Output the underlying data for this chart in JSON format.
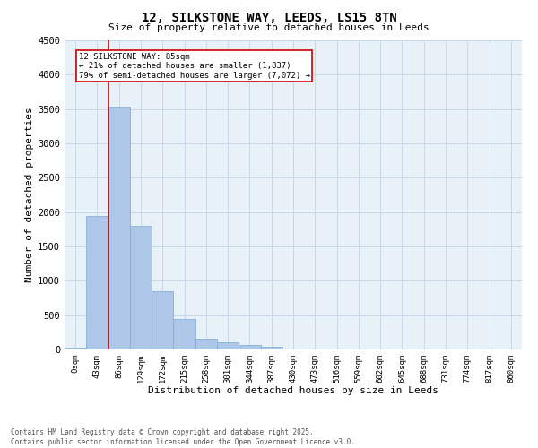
{
  "title_line1": "12, SILKSTONE WAY, LEEDS, LS15 8TN",
  "title_line2": "Size of property relative to detached houses in Leeds",
  "xlabel": "Distribution of detached houses by size in Leeds",
  "ylabel": "Number of detached properties",
  "bar_labels": [
    "0sqm",
    "43sqm",
    "86sqm",
    "129sqm",
    "172sqm",
    "215sqm",
    "258sqm",
    "301sqm",
    "344sqm",
    "387sqm",
    "430sqm",
    "473sqm",
    "516sqm",
    "559sqm",
    "602sqm",
    "645sqm",
    "688sqm",
    "731sqm",
    "774sqm",
    "817sqm",
    "860sqm"
  ],
  "bar_values": [
    30,
    1940,
    3530,
    1800,
    850,
    450,
    160,
    100,
    60,
    40,
    0,
    0,
    0,
    0,
    0,
    0,
    0,
    0,
    0,
    0,
    0
  ],
  "bar_color": "#aec6e8",
  "bar_edge_color": "#7aabd0",
  "ylim": [
    0,
    4500
  ],
  "yticks": [
    0,
    500,
    1000,
    1500,
    2000,
    2500,
    3000,
    3500,
    4000,
    4500
  ],
  "vline_color": "#cc0000",
  "annotation_line1": "12 SILKSTONE WAY: 85sqm",
  "annotation_line2": "← 21% of detached houses are smaller (1,837)",
  "annotation_line3": "79% of semi-detached houses are larger (7,072) →",
  "annotation_box_color": "#cc0000",
  "grid_color": "#c8d8e8",
  "bg_color": "#e8f0f8",
  "footnote_line1": "Contains HM Land Registry data © Crown copyright and database right 2025.",
  "footnote_line2": "Contains public sector information licensed under the Open Government Licence v3.0."
}
